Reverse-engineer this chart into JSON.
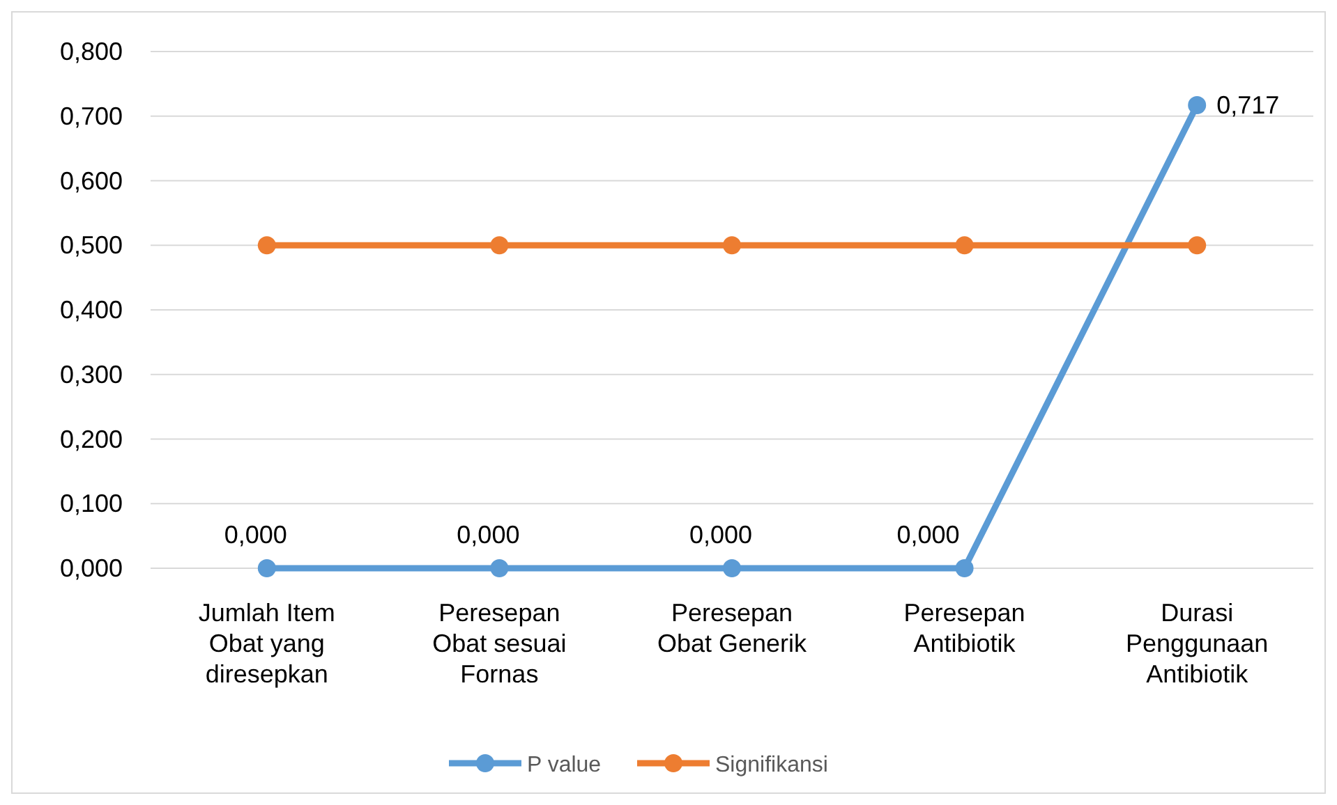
{
  "chart_data": {
    "type": "line",
    "categories": [
      "Jumlah Item Obat yang diresepkan",
      "Peresepan Obat sesuai Fornas",
      "Peresepan Obat Generik",
      "Peresepan Antibiotik",
      "Durasi Penggunaan Antibiotik"
    ],
    "series": [
      {
        "name": "P value",
        "color": "#5b9bd5",
        "values": [
          0,
          0,
          0,
          0,
          0.717
        ],
        "value_labels": [
          "0,000",
          "0,000",
          "0,000",
          "0,000",
          "0,717"
        ]
      },
      {
        "name": "Signifikansi",
        "color": "#ed7d31",
        "values": [
          0.5,
          0.5,
          0.5,
          0.5,
          0.5
        ]
      }
    ],
    "ylim": [
      0,
      0.8
    ],
    "yticks": [
      {
        "value": 0,
        "label": "0,000"
      },
      {
        "value": 0.1,
        "label": "0,100"
      },
      {
        "value": 0.2,
        "label": "0,200"
      },
      {
        "value": 0.3,
        "label": "0,300"
      },
      {
        "value": 0.4,
        "label": "0,400"
      },
      {
        "value": 0.5,
        "label": "0,500"
      },
      {
        "value": 0.6,
        "label": "0,600"
      },
      {
        "value": 0.7,
        "label": "0,700"
      },
      {
        "value": 0.8,
        "label": "0,800"
      }
    ],
    "grid": "y",
    "legend": "bottom",
    "marker": "circle",
    "line_style": "solid"
  }
}
